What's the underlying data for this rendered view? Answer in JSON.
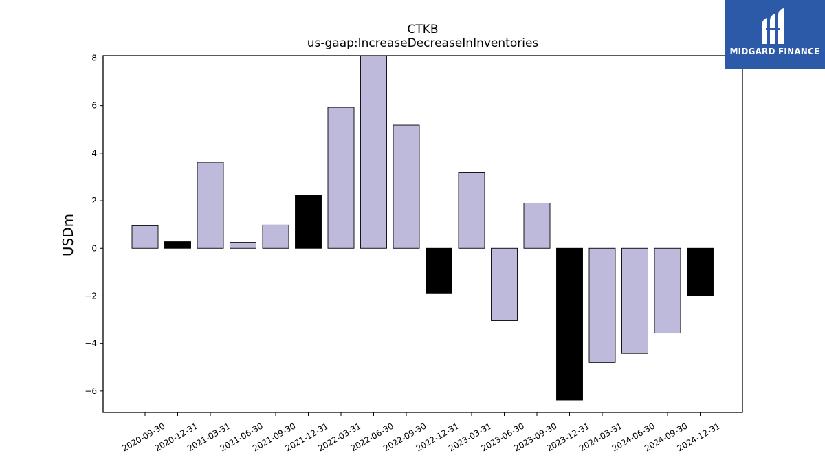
{
  "chart_data": {
    "type": "bar",
    "title": "CTKB",
    "subtitle": "us-gaap:IncreaseDecreaseInInventories",
    "xlabel": "",
    "ylabel": "USDm",
    "ylim": [
      -6.9,
      8.1
    ],
    "yticks": [
      -6,
      -4,
      -2,
      0,
      2,
      4,
      6,
      8
    ],
    "grid": false,
    "categories": [
      "2020-09-30",
      "2020-12-31",
      "2021-03-31",
      "2021-06-30",
      "2021-09-30",
      "2021-12-31",
      "2022-03-31",
      "2022-06-30",
      "2022-09-30",
      "2022-12-31",
      "2023-03-31",
      "2023-06-30",
      "2023-09-30",
      "2023-12-31",
      "2024-03-31",
      "2024-06-30",
      "2024-09-30",
      "2024-12-31"
    ],
    "values": [
      0.95,
      0.28,
      3.62,
      0.25,
      0.98,
      2.24,
      5.93,
      8.15,
      5.18,
      -1.88,
      3.2,
      -3.04,
      1.9,
      -6.38,
      -4.8,
      -4.42,
      -3.56,
      -2.0
    ],
    "bar_colors": [
      "#bdbadb",
      "#000000",
      "#bdbadb",
      "#bdbadb",
      "#bdbadb",
      "#000000",
      "#bdbadb",
      "#bdbadb",
      "#bdbadb",
      "#000000",
      "#bdbadb",
      "#bdbadb",
      "#bdbadb",
      "#000000",
      "#bdbadb",
      "#bdbadb",
      "#bdbadb",
      "#000000"
    ],
    "colors": {
      "quarter_bar": "#bdbadb",
      "year_end_bar": "#000000",
      "bar_edge": "#000000"
    }
  },
  "logo": {
    "text": "MIDGARD FINANCE",
    "background": "#2c5aa8",
    "icon": "midgard-logo-icon"
  }
}
